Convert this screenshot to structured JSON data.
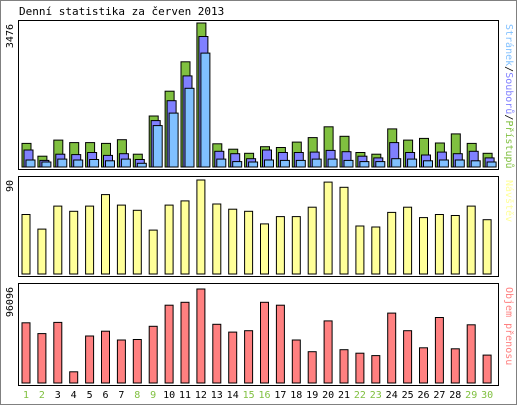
{
  "title": "Denní statistika za červen 2013",
  "colors": {
    "hits": "#80c040",
    "files": "#8080ff",
    "pages": "#80c0ff",
    "visits": "#ffff99",
    "volume": "#ff8080",
    "weekend_day": "#80c040",
    "weekday_day": "#000000"
  },
  "legends": {
    "pages_label": "Stránek",
    "files_label": "Souborů",
    "hits_label": "Přístupů",
    "separator": "/",
    "visits_label": "Návštěv",
    "volume_label": "Objem přenosu"
  },
  "chart_data": [
    {
      "type": "bar",
      "panel": "requests",
      "ymax_label": "3476",
      "ylim": [
        0,
        3476
      ],
      "categories": [
        "1",
        "2",
        "3",
        "4",
        "5",
        "6",
        "7",
        "8",
        "9",
        "10",
        "11",
        "12",
        "13",
        "14",
        "15",
        "16",
        "17",
        "18",
        "19",
        "20",
        "21",
        "22",
        "23",
        "24",
        "25",
        "26",
        "27",
        "28",
        "29",
        "30"
      ],
      "series": [
        {
          "name": "Přístupů",
          "values": [
            570,
            260,
            650,
            590,
            590,
            570,
            660,
            310,
            1230,
            1830,
            2540,
            3476,
            560,
            430,
            330,
            490,
            470,
            600,
            710,
            970,
            740,
            350,
            310,
            920,
            650,
            690,
            580,
            800,
            570,
            330
          ]
        },
        {
          "name": "Souborů",
          "values": [
            410,
            160,
            310,
            300,
            350,
            280,
            320,
            180,
            1120,
            1600,
            2200,
            3150,
            380,
            320,
            200,
            410,
            350,
            350,
            360,
            400,
            370,
            260,
            220,
            590,
            350,
            290,
            360,
            320,
            380,
            220
          ]
        },
        {
          "name": "Stránek",
          "values": [
            170,
            120,
            190,
            170,
            180,
            150,
            190,
            90,
            1000,
            1300,
            1900,
            2750,
            190,
            130,
            120,
            170,
            160,
            160,
            190,
            190,
            160,
            130,
            130,
            200,
            190,
            150,
            170,
            170,
            150,
            120
          ]
        }
      ]
    },
    {
      "type": "bar",
      "panel": "visits",
      "ymax_label": "90",
      "ylim": [
        0,
        90
      ],
      "categories": [
        "1",
        "2",
        "3",
        "4",
        "5",
        "6",
        "7",
        "8",
        "9",
        "10",
        "11",
        "12",
        "13",
        "14",
        "15",
        "16",
        "17",
        "18",
        "19",
        "20",
        "21",
        "22",
        "23",
        "24",
        "25",
        "26",
        "27",
        "28",
        "29",
        "30"
      ],
      "series": [
        {
          "name": "Návštěv",
          "values": [
            57,
            43,
            65,
            60,
            65,
            76,
            66,
            61,
            42,
            66,
            70,
            90,
            67,
            62,
            60,
            48,
            55,
            55,
            64,
            88,
            83,
            46,
            45,
            59,
            64,
            54,
            57,
            56,
            65,
            52
          ]
        }
      ]
    },
    {
      "type": "bar",
      "panel": "volume",
      "ymax_label": "96096",
      "ylim": [
        0,
        96096
      ],
      "categories": [
        "1",
        "2",
        "3",
        "4",
        "5",
        "6",
        "7",
        "8",
        "9",
        "10",
        "11",
        "12",
        "13",
        "14",
        "15",
        "16",
        "17",
        "18",
        "19",
        "20",
        "21",
        "22",
        "23",
        "24",
        "25",
        "26",
        "27",
        "28",
        "29",
        "30"
      ],
      "series": [
        {
          "name": "Objem přenosu",
          "values": [
            61500,
            50500,
            62000,
            11500,
            48000,
            53000,
            44000,
            44500,
            58000,
            79500,
            82500,
            96096,
            60000,
            52000,
            53500,
            82500,
            79500,
            44000,
            32000,
            63500,
            34000,
            30500,
            28000,
            71500,
            53500,
            36000,
            67000,
            35000,
            59500,
            28500
          ]
        }
      ]
    }
  ],
  "days": [
    {
      "label": "1",
      "weekend": true
    },
    {
      "label": "2",
      "weekend": true
    },
    {
      "label": "3",
      "weekend": false
    },
    {
      "label": "4",
      "weekend": false
    },
    {
      "label": "5",
      "weekend": false
    },
    {
      "label": "6",
      "weekend": false
    },
    {
      "label": "7",
      "weekend": false
    },
    {
      "label": "8",
      "weekend": true
    },
    {
      "label": "9",
      "weekend": true
    },
    {
      "label": "10",
      "weekend": false
    },
    {
      "label": "11",
      "weekend": false
    },
    {
      "label": "12",
      "weekend": false
    },
    {
      "label": "13",
      "weekend": false
    },
    {
      "label": "14",
      "weekend": false
    },
    {
      "label": "15",
      "weekend": true
    },
    {
      "label": "16",
      "weekend": true
    },
    {
      "label": "17",
      "weekend": false
    },
    {
      "label": "18",
      "weekend": false
    },
    {
      "label": "19",
      "weekend": false
    },
    {
      "label": "20",
      "weekend": false
    },
    {
      "label": "21",
      "weekend": false
    },
    {
      "label": "22",
      "weekend": true
    },
    {
      "label": "23",
      "weekend": true
    },
    {
      "label": "24",
      "weekend": false
    },
    {
      "label": "25",
      "weekend": false
    },
    {
      "label": "26",
      "weekend": false
    },
    {
      "label": "27",
      "weekend": false
    },
    {
      "label": "28",
      "weekend": false
    },
    {
      "label": "29",
      "weekend": true
    },
    {
      "label": "30",
      "weekend": true
    }
  ]
}
